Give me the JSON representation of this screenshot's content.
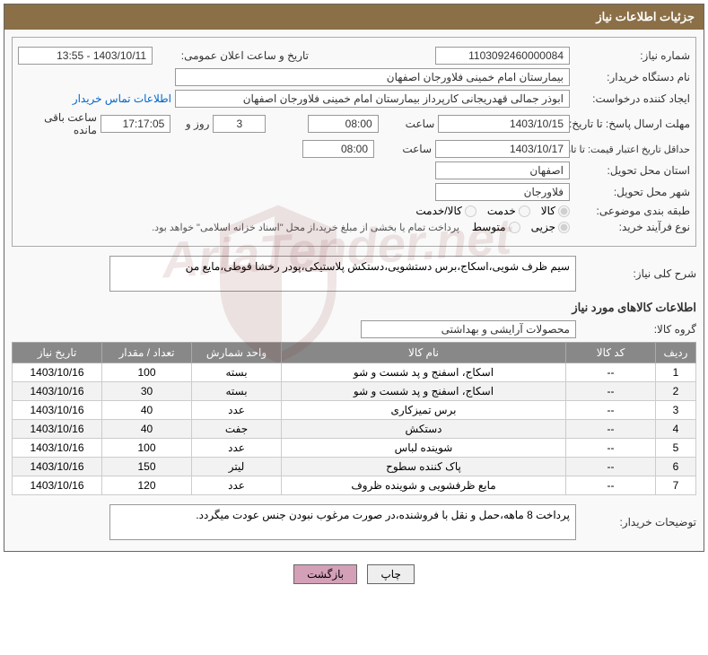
{
  "panel_title": "جزئیات اطلاعات نیاز",
  "labels": {
    "req_no": "شماره نیاز:",
    "announce_dt": "تاریخ و ساعت اعلان عمومی:",
    "buyer_org": "نام دستگاه خریدار:",
    "requester": "ایجاد کننده درخواست:",
    "contact_link": "اطلاعات تماس خریدار",
    "deadline": "مهلت ارسال پاسخ: تا تاریخ:",
    "hour": "ساعت",
    "days_and": "روز و",
    "time_left": "ساعت باقی مانده",
    "min_validity": "حداقل تاریخ اعتبار قیمت: تا تاریخ:",
    "delivery_province": "استان محل تحویل:",
    "delivery_city": "شهر محل تحویل:",
    "subject_class": "طبقه بندی موضوعی:",
    "purchase_type": "نوع فرآیند خرید:",
    "purchase_note": "پرداخت تمام یا بخشی از مبلغ خرید،از محل \"اسناد خزانه اسلامی\" خواهد بود.",
    "general_desc": "شرح کلی نیاز:",
    "goods_info": "اطلاعات کالاهای مورد نیاز",
    "goods_group": "گروه کالا:",
    "buyer_notes": "توضیحات خریدار:"
  },
  "values": {
    "req_no": "1103092460000084",
    "announce_dt": "1403/10/11 - 13:55",
    "buyer_org": "بیمارستان امام خمینی فلاورجان اصفهان",
    "requester": "ابوذر جمالی قهدریجانی کارپرداز بیمارستان امام خمینی فلاورجان اصفهان",
    "deadline_date": "1403/10/15",
    "deadline_hour": "08:00",
    "days_left": "3",
    "countdown": "17:17:05",
    "validity_date": "1403/10/17",
    "validity_hour": "08:00",
    "province": "اصفهان",
    "city": "فلاورجان",
    "general_desc": "سیم ظرف شویی،اسکاج،برس دستشویی،دستکش پلاستیکی،پودر رخشا قوطی،مایع من",
    "goods_group": "محصولات آرایشی و بهداشتی",
    "buyer_notes": "پرداخت 8 ماهه،حمل و نقل با فروشنده،در صورت مرغوب نبودن جنس عودت میگردد."
  },
  "radios": {
    "class_goods": "کالا",
    "class_service": "خدمت",
    "class_both": "کالا/خدمت",
    "type_small": "جزیی",
    "type_medium": "متوسط"
  },
  "table": {
    "headers": {
      "row": "ردیف",
      "code": "کد کالا",
      "name": "نام کالا",
      "unit": "واحد شمارش",
      "qty": "تعداد / مقدار",
      "date": "تاریخ نیاز"
    },
    "rows": [
      {
        "row": "1",
        "code": "--",
        "name": "اسکاج، اسفنج و پد شست و شو",
        "unit": "بسته",
        "qty": "100",
        "date": "1403/10/16"
      },
      {
        "row": "2",
        "code": "--",
        "name": "اسکاج، اسفنج و پد شست و شو",
        "unit": "بسته",
        "qty": "30",
        "date": "1403/10/16"
      },
      {
        "row": "3",
        "code": "--",
        "name": "برس تمیزکاری",
        "unit": "عدد",
        "qty": "40",
        "date": "1403/10/16"
      },
      {
        "row": "4",
        "code": "--",
        "name": "دستکش",
        "unit": "جفت",
        "qty": "40",
        "date": "1403/10/16"
      },
      {
        "row": "5",
        "code": "--",
        "name": "شوینده لباس",
        "unit": "عدد",
        "qty": "100",
        "date": "1403/10/16"
      },
      {
        "row": "6",
        "code": "--",
        "name": "پاک کننده سطوح",
        "unit": "لیتر",
        "qty": "150",
        "date": "1403/10/16"
      },
      {
        "row": "7",
        "code": "--",
        "name": "مایع ظرفشویی و شوینده ظروف",
        "unit": "عدد",
        "qty": "120",
        "date": "1403/10/16"
      }
    ]
  },
  "buttons": {
    "print": "چاپ",
    "back": "بازگشت"
  },
  "watermark": "AriaTender.net"
}
